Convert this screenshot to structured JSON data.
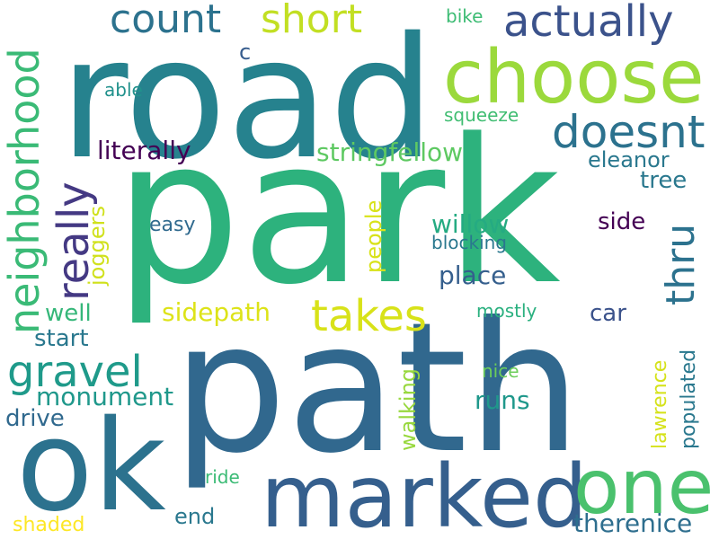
{
  "words": [
    {
      "text": "road",
      "color": "#26828e"
    },
    {
      "text": "park",
      "color": "#2db27d"
    },
    {
      "text": "path",
      "color": "#31688e"
    },
    {
      "text": "ok",
      "color": "#2c728e"
    },
    {
      "text": "marked",
      "color": "#355f8d"
    },
    {
      "text": "choose",
      "color": "#9bd93c"
    },
    {
      "text": "one",
      "color": "#4ac16d"
    },
    {
      "text": "actually",
      "color": "#3b528b"
    },
    {
      "text": "short",
      "color": "#c2df23"
    },
    {
      "text": "count",
      "color": "#2c728e"
    },
    {
      "text": "doesnt",
      "color": "#2c728e"
    },
    {
      "text": "neighborhood",
      "color": "#3aba76"
    },
    {
      "text": "really",
      "color": "#443983"
    },
    {
      "text": "thru",
      "color": "#2c728e"
    },
    {
      "text": "takes",
      "color": "#d8e219"
    },
    {
      "text": "gravel",
      "color": "#1f9a8a"
    },
    {
      "text": "literally",
      "color": "#440154"
    },
    {
      "text": "stringfellow",
      "color": "#5ec962"
    },
    {
      "text": "eleanor",
      "color": "#2a788e"
    },
    {
      "text": "tree",
      "color": "#2a788e"
    },
    {
      "text": "side",
      "color": "#440154"
    },
    {
      "text": "willow",
      "color": "#25ab82"
    },
    {
      "text": "blocking",
      "color": "#2a788e"
    },
    {
      "text": "place",
      "color": "#355f8d"
    },
    {
      "text": "sidepath",
      "color": "#dde318"
    },
    {
      "text": "well",
      "color": "#35b779"
    },
    {
      "text": "start",
      "color": "#2a788e"
    },
    {
      "text": "monument",
      "color": "#1f988b"
    },
    {
      "text": "drive",
      "color": "#30698e"
    },
    {
      "text": "car",
      "color": "#3b528b"
    },
    {
      "text": "mostly",
      "color": "#2ab07f"
    },
    {
      "text": "runs",
      "color": "#1f988b"
    },
    {
      "text": "nice",
      "color": "#6ccd5a"
    },
    {
      "text": "end",
      "color": "#2a788e"
    },
    {
      "text": "ride",
      "color": "#3bbb75"
    },
    {
      "text": "therenice",
      "color": "#2e6e8e"
    },
    {
      "text": "shaded",
      "color": "#fde725"
    },
    {
      "text": "joggers",
      "color": "#d0e11c"
    },
    {
      "text": "people",
      "color": "#d8e219"
    },
    {
      "text": "walking",
      "color": "#98d83e"
    },
    {
      "text": "lawrence",
      "color": "#d5e21a"
    },
    {
      "text": "populated",
      "color": "#2a788e"
    },
    {
      "text": "easy",
      "color": "#306a8e"
    },
    {
      "text": "c",
      "color": "#365c8d"
    },
    {
      "text": "bike",
      "color": "#3dbc74"
    },
    {
      "text": "able",
      "color": "#21918c"
    },
    {
      "text": "squeeze",
      "color": "#40bd72"
    }
  ]
}
